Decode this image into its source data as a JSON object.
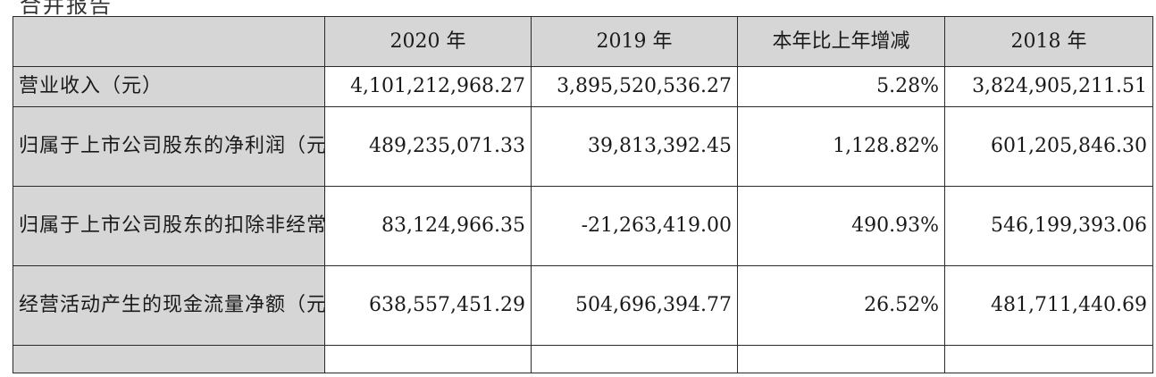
{
  "caption": "合并报告",
  "table": {
    "headers": [
      "2020 年",
      "2019 年",
      "本年比上年增减",
      "2018 年"
    ],
    "rows": [
      {
        "label": "营业收入（元）",
        "values": [
          "4,101,212,968.27",
          "3,895,520,536.27",
          "5.28%",
          "3,824,905,211.51"
        ]
      },
      {
        "label": "归属于上市公司股东的净利润（元）",
        "values": [
          "489,235,071.33",
          "39,813,392.45",
          "1,128.82%",
          "601,205,846.30"
        ]
      },
      {
        "label": "归属于上市公司股东的扣除非经常性损益的净利润（元）",
        "values": [
          "83,124,966.35",
          "-21,263,419.00",
          "490.93%",
          "546,199,393.06"
        ]
      },
      {
        "label": "经营活动产生的现金流量净额（元）",
        "values": [
          "638,557,451.29",
          "504,696,394.77",
          "26.52%",
          "481,711,440.69"
        ]
      }
    ]
  }
}
